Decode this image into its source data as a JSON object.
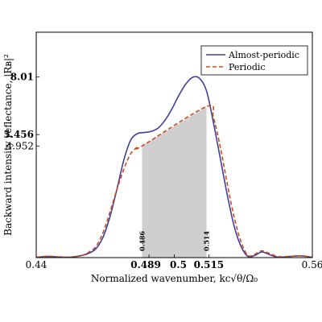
{
  "chart_data": {
    "type": "line",
    "xlabel": "Normalized wavenumber, kc√θ/Ω₀",
    "ylabel": "Backward intensity reflectance, |Rʙ|²",
    "xlim": [
      0.44,
      0.56
    ],
    "ylim": [
      0,
      10
    ],
    "x_tick_labels": [
      "0.44",
      "0.489",
      "0.5",
      "0.515",
      "0.56"
    ],
    "x_tick_values": [
      0.44,
      0.489,
      0.5,
      0.515,
      0.56
    ],
    "x_tick_bold": [
      false,
      true,
      true,
      true,
      false
    ],
    "y_tick_labels": [
      "8.01",
      "5.456",
      "4.952"
    ],
    "y_tick_values": [
      8.01,
      5.456,
      4.952
    ],
    "y_tick_bold": [
      true,
      true,
      false
    ],
    "band": {
      "from": 0.486,
      "to": 0.514,
      "y_from": 4.952,
      "y_to": 6.7,
      "color": "#cfcfcf",
      "left_label": "0.486",
      "right_label": "0.514"
    },
    "legend": {
      "position": "top-right"
    },
    "series": [
      {
        "name": "Almost-periodic",
        "color": "#3f3f9f",
        "style": "solid",
        "x": [
          0.44,
          0.445,
          0.45,
          0.455,
          0.46,
          0.463,
          0.466,
          0.469,
          0.472,
          0.475,
          0.478,
          0.481,
          0.484,
          0.487,
          0.49,
          0.493,
          0.496,
          0.499,
          0.502,
          0.505,
          0.508,
          0.511,
          0.514,
          0.517,
          0.52,
          0.523,
          0.526,
          0.529,
          0.532,
          0.535,
          0.538,
          0.541,
          0.545,
          0.55,
          0.555,
          0.56
        ],
        "y": [
          0.01,
          0.05,
          0.03,
          0.02,
          0.1,
          0.2,
          0.4,
          0.9,
          1.8,
          3.0,
          4.3,
          5.2,
          5.5,
          5.55,
          5.6,
          5.75,
          6.1,
          6.6,
          7.2,
          7.7,
          8.0,
          7.95,
          7.4,
          6.0,
          4.4,
          2.8,
          1.4,
          0.5,
          0.05,
          0.1,
          0.25,
          0.15,
          0.02,
          0.05,
          0.08,
          0.01
        ]
      },
      {
        "name": "Periodic",
        "color": "#cc4a14",
        "style": "dashed",
        "x": [
          0.44,
          0.445,
          0.45,
          0.455,
          0.46,
          0.463,
          0.466,
          0.469,
          0.472,
          0.475,
          0.478,
          0.481,
          0.484,
          0.486,
          0.514,
          0.517,
          0.52,
          0.523,
          0.526,
          0.529,
          0.532,
          0.535,
          0.538,
          0.541,
          0.545,
          0.55,
          0.555,
          0.56
        ],
        "y": [
          0.01,
          0.06,
          0.03,
          0.02,
          0.1,
          0.25,
          0.5,
          1.1,
          2.0,
          3.0,
          3.9,
          4.6,
          4.9,
          4.952,
          6.7,
          6.2,
          4.9,
          3.3,
          1.8,
          0.7,
          0.1,
          0.15,
          0.3,
          0.2,
          0.05,
          0.05,
          0.08,
          0.01
        ]
      }
    ]
  }
}
